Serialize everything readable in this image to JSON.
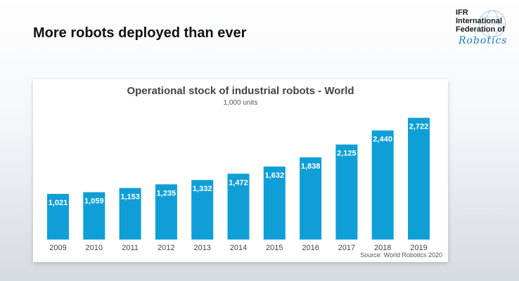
{
  "slide": {
    "title": "More robots deployed than ever"
  },
  "logo": {
    "line1": "IFR",
    "line2": "International",
    "line3": "Federation of",
    "script": "Robotics",
    "brand_color": "#1d78c1"
  },
  "chart_data": {
    "type": "bar",
    "title": "Operational stock of industrial robots - World",
    "subtitle": "1,000 units",
    "source": "Source: World Robotics 2020",
    "categories": [
      "2009",
      "2010",
      "2011",
      "2012",
      "2013",
      "2014",
      "2015",
      "2016",
      "2017",
      "2018",
      "2019"
    ],
    "values": [
      1021,
      1059,
      1153,
      1235,
      1332,
      1472,
      1632,
      1838,
      2125,
      2440,
      2722
    ],
    "value_labels": [
      "1,021",
      "1,059",
      "1,153",
      "1,235",
      "1,332",
      "1,472",
      "1,632",
      "1,838",
      "2,125",
      "2,440",
      "2,722"
    ],
    "ylim": [
      0,
      3000
    ],
    "grid": false,
    "legend": "none",
    "bar_color": "#0f9fd6"
  }
}
